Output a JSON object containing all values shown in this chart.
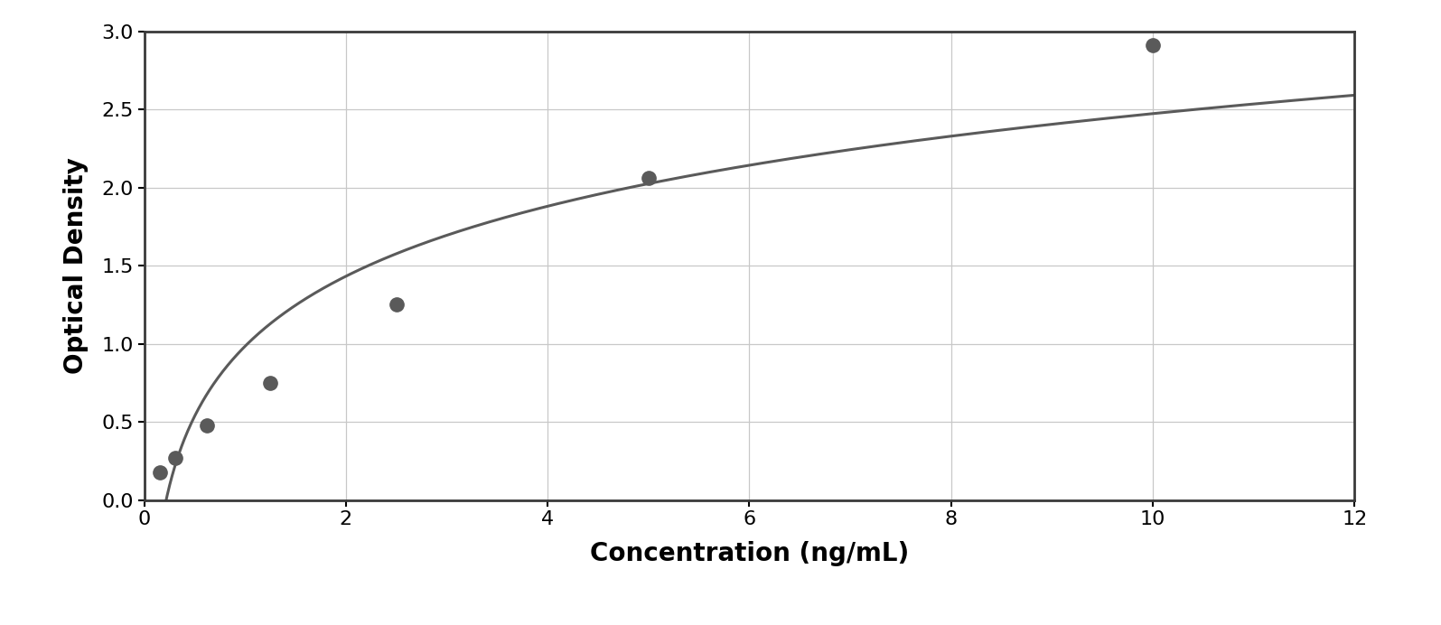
{
  "x_data": [
    0.156,
    0.313,
    0.625,
    1.25,
    2.5,
    5.0,
    10.0
  ],
  "y_data": [
    0.175,
    0.27,
    0.48,
    0.75,
    1.25,
    2.06,
    2.91
  ],
  "xlabel": "Concentration (ng/mL)",
  "ylabel": "Optical Density",
  "xlim": [
    0,
    12
  ],
  "ylim": [
    0,
    3
  ],
  "xticks": [
    0,
    2,
    4,
    6,
    8,
    10,
    12
  ],
  "yticks": [
    0,
    0.5,
    1.0,
    1.5,
    2.0,
    2.5,
    3.0
  ],
  "data_color": "#5a5a5a",
  "line_color": "#5a5a5a",
  "background_color": "#ffffff",
  "plot_bg_color": "#ffffff",
  "grid_color": "#c8c8c8",
  "marker_size": 11,
  "line_width": 2.2,
  "xlabel_fontsize": 20,
  "ylabel_fontsize": 20,
  "tick_fontsize": 16,
  "xlabel_fontweight": "bold",
  "ylabel_fontweight": "bold",
  "spine_color": "#3a3a3a",
  "spine_linewidth": 2.0
}
